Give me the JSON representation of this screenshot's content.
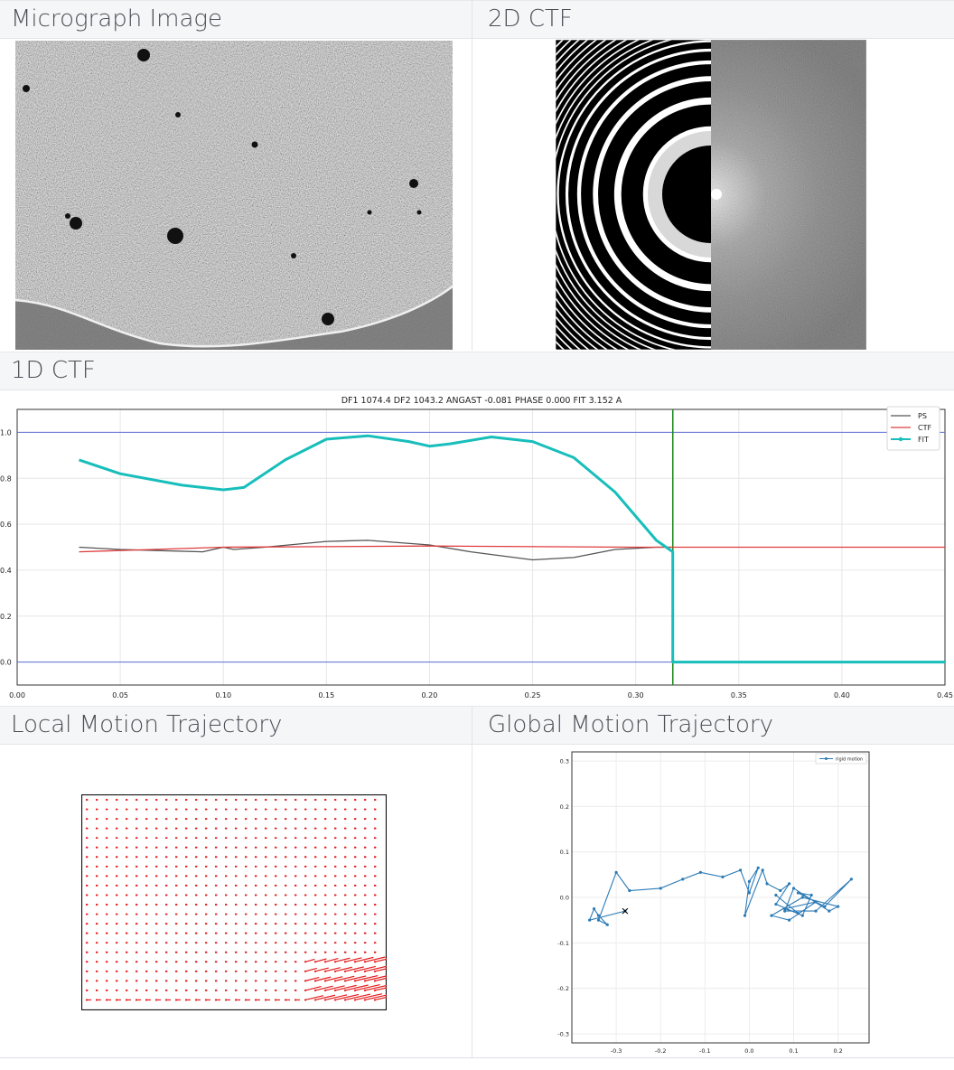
{
  "headers": {
    "micrograph": "Micrograph Image",
    "ctf2d": "2D CTF",
    "ctf1d": "1D CTF",
    "local_motion": "Local Motion Trajectory",
    "global_motion": "Global Motion Trajectory"
  },
  "ctf1d": {
    "title": "DF1 1074.4 DF2 1043.2 ANGAST -0.081 PHASE 0.000 FIT 3.152 A",
    "legend": [
      "PS",
      "CTF",
      "FIT"
    ],
    "colors": {
      "ps": "#555555",
      "ctf": "#e03c3c",
      "fit": "#17bebb",
      "hline": "#5a6fd8",
      "vline": "#1a8a1a"
    }
  },
  "global_motion": {
    "legend": "rigid motion",
    "color": "#2c7bb6"
  },
  "chart_data": [
    {
      "type": "line",
      "title": "DF1 1074.4 DF2 1043.2 ANGAST -0.081 PHASE 0.000 FIT 3.152 A",
      "xlim": [
        0.0,
        0.45
      ],
      "ylim": [
        -0.1,
        1.1
      ],
      "xticks": [
        "0.00",
        "0.05",
        "0.10",
        "0.15",
        "0.20",
        "0.25",
        "0.30",
        "0.35",
        "0.40",
        "0.45"
      ],
      "yticks": [
        "0.0",
        "0.2",
        "0.4",
        "0.6",
        "0.8",
        "1.0"
      ],
      "hlines": [
        0.0,
        1.0
      ],
      "vline": 0.318,
      "series": [
        {
          "name": "PS",
          "x": [
            0.03,
            0.05,
            0.07,
            0.09,
            0.1,
            0.105,
            0.12,
            0.15,
            0.17,
            0.2,
            0.22,
            0.25,
            0.27,
            0.29,
            0.31,
            0.318
          ],
          "y": [
            0.5,
            0.49,
            0.485,
            0.48,
            0.5,
            0.49,
            0.5,
            0.525,
            0.53,
            0.51,
            0.48,
            0.445,
            0.455,
            0.49,
            0.5,
            0.5
          ]
        },
        {
          "name": "CTF",
          "x": [
            0.03,
            0.1,
            0.2,
            0.3,
            0.318,
            0.45
          ],
          "y": [
            0.48,
            0.5,
            0.505,
            0.5,
            0.5,
            0.5
          ]
        },
        {
          "name": "FIT",
          "x": [
            0.03,
            0.05,
            0.08,
            0.1,
            0.11,
            0.13,
            0.15,
            0.17,
            0.19,
            0.2,
            0.21,
            0.23,
            0.25,
            0.27,
            0.29,
            0.31,
            0.318,
            0.318,
            0.45
          ],
          "y": [
            0.88,
            0.82,
            0.77,
            0.75,
            0.76,
            0.88,
            0.97,
            0.985,
            0.96,
            0.94,
            0.95,
            0.98,
            0.96,
            0.89,
            0.74,
            0.53,
            0.48,
            0.0,
            0.0
          ]
        }
      ]
    },
    {
      "type": "line",
      "title": "",
      "xlim": [
        -0.4,
        0.27
      ],
      "ylim": [
        -0.32,
        0.32
      ],
      "xticks": [
        "-0.3",
        "-0.2",
        "-0.1",
        "0.0",
        "0.1",
        "0.2"
      ],
      "yticks": [
        "-0.3",
        "-0.2",
        "-0.1",
        "0.0",
        "0.1",
        "0.2",
        "0.3"
      ],
      "series": [
        {
          "name": "rigid motion",
          "x": [
            -0.28,
            -0.36,
            -0.35,
            -0.34,
            -0.32,
            -0.34,
            -0.3,
            -0.27,
            -0.2,
            -0.15,
            -0.11,
            -0.06,
            -0.02,
            0.0,
            0.02,
            0.0,
            -0.01,
            0.03,
            0.04,
            0.07,
            0.09,
            0.06,
            0.12,
            0.14,
            0.11,
            0.17,
            0.23,
            0.15,
            0.08,
            0.1,
            0.18,
            0.2,
            0.12,
            0.05,
            0.09,
            0.15,
            0.08,
            0.11,
            0.06
          ],
          "y": [
            -0.03,
            -0.05,
            -0.025,
            -0.04,
            -0.06,
            -0.05,
            0.055,
            0.015,
            0.02,
            0.04,
            0.055,
            0.045,
            0.06,
            0.01,
            0.065,
            0.035,
            -0.04,
            0.06,
            0.03,
            0.015,
            0.03,
            -0.015,
            -0.04,
            0.005,
            0.01,
            -0.02,
            0.04,
            -0.03,
            -0.03,
            0.02,
            -0.03,
            -0.02,
            0.0,
            -0.04,
            -0.05,
            -0.01,
            -0.025,
            -0.035,
            0.005
          ]
        }
      ]
    }
  ]
}
